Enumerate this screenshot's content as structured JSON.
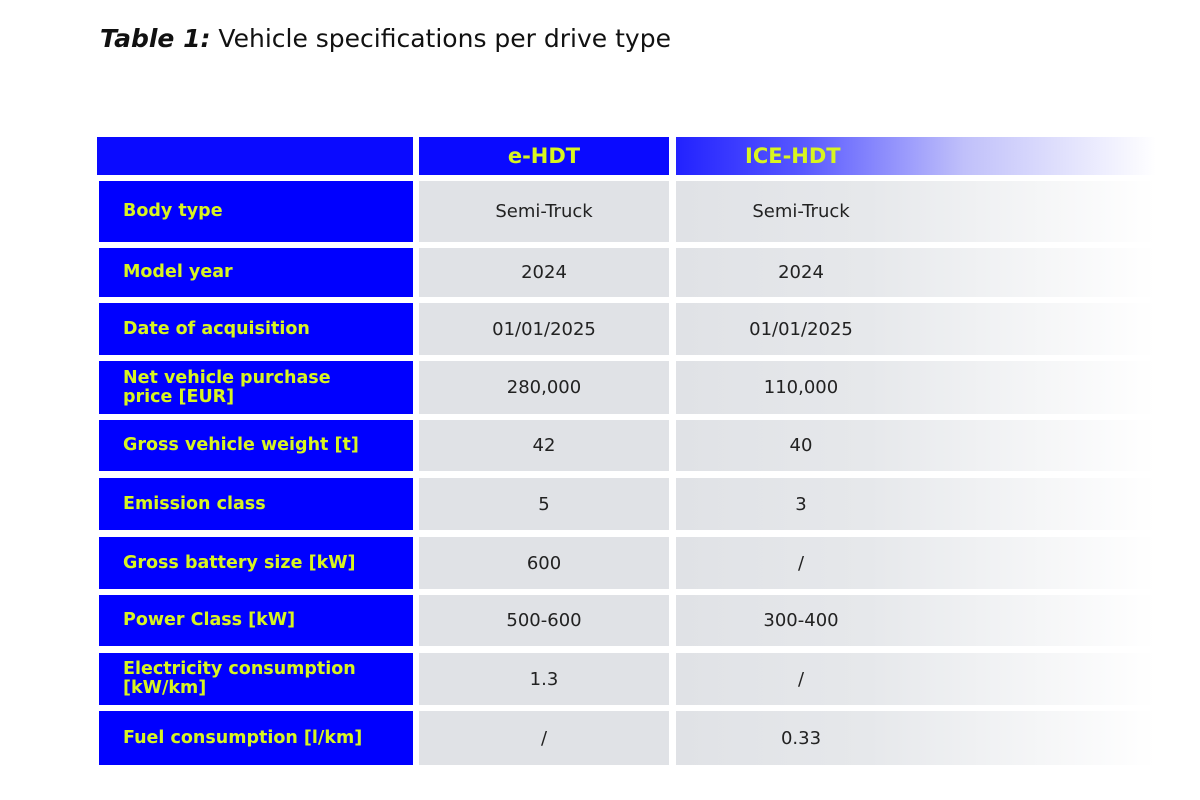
{
  "title": {
    "prefix": "Table 1:",
    "text": " Vehicle specifications per drive type"
  },
  "columns": [
    "e-HDT",
    "ICE-HDT"
  ],
  "rows": [
    {
      "label": "Body type",
      "ehdt": "Semi-Truck",
      "ice": "Semi-Truck"
    },
    {
      "label": "Model year",
      "ehdt": "2024",
      "ice": "2024"
    },
    {
      "label": "Date of acquisition",
      "ehdt": "01/01/2025",
      "ice": "01/01/2025"
    },
    {
      "label": "Net vehicle purchase price [EUR]",
      "ehdt": "280,000",
      "ice": "110,000"
    },
    {
      "label": "Gross vehicle weight [t]",
      "ehdt": "42",
      "ice": "40"
    },
    {
      "label": "Emission class",
      "ehdt": "5",
      "ice": "3"
    },
    {
      "label": "Gross battery size [kW]",
      "ehdt": "600",
      "ice": "/"
    },
    {
      "label": "Power Class [kW]",
      "ehdt": "500-600",
      "ice": "300-400"
    },
    {
      "label": "Electricity consumption [kW/km]",
      "ehdt": "1.3",
      "ice": "/"
    },
    {
      "label": "Fuel consumption [l/km]",
      "ehdt": "/",
      "ice": "0.33"
    }
  ]
}
